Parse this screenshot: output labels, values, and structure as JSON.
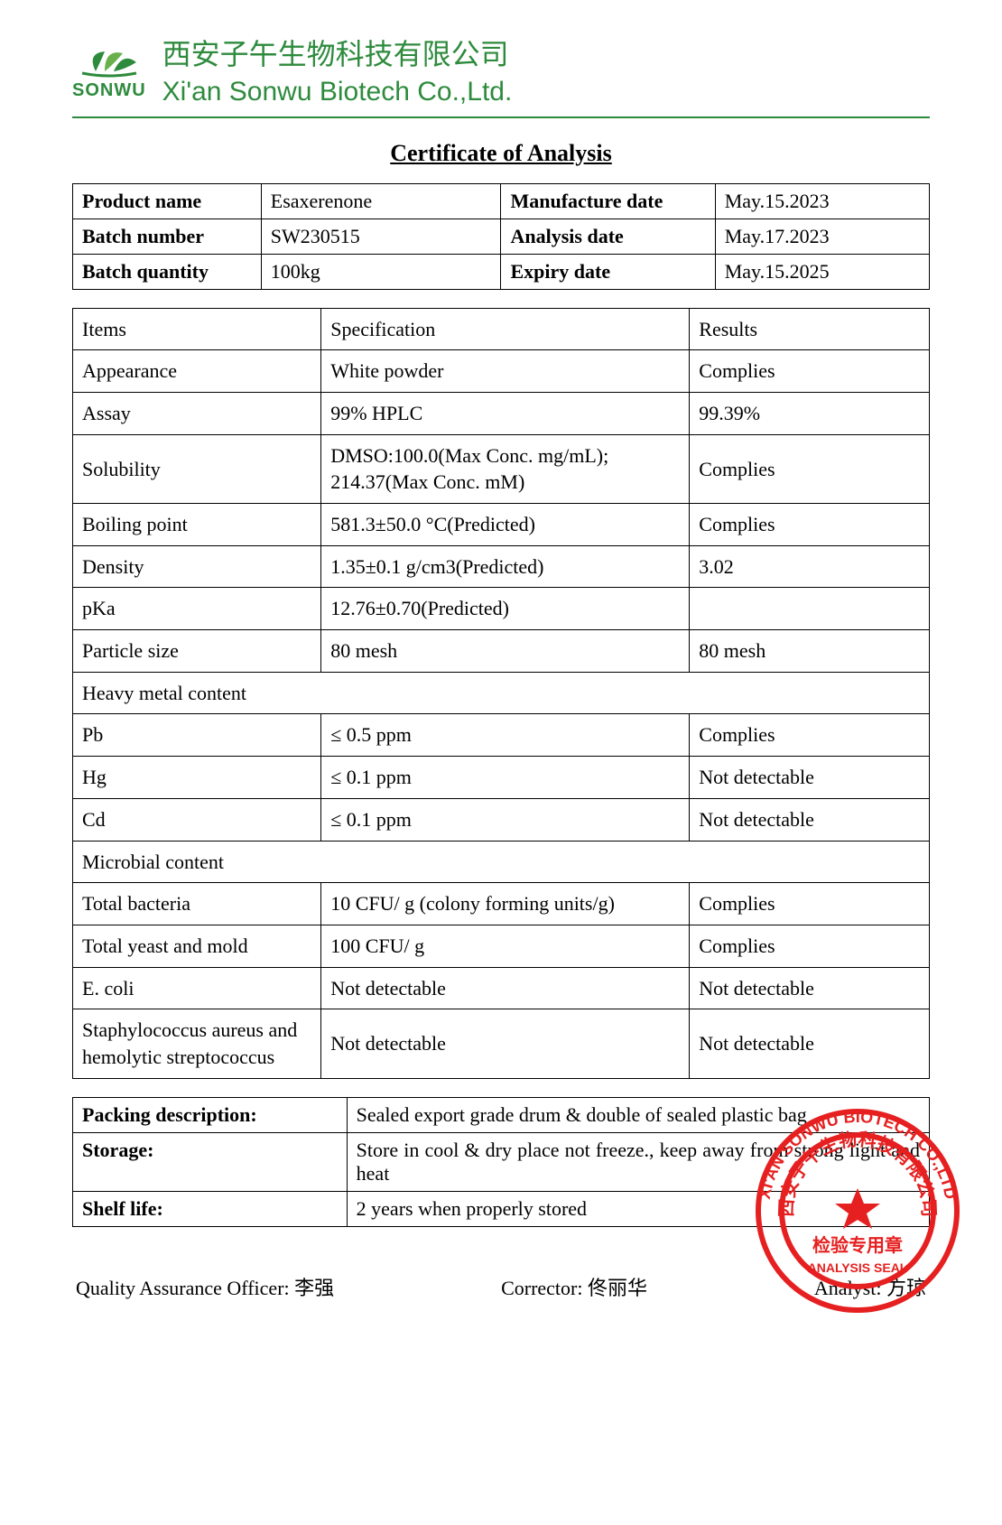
{
  "brand": {
    "logo_text": "SONWU",
    "company_cn": "西安子午生物科技有限公司",
    "company_en": "Xi'an Sonwu Biotech Co.,Ltd.",
    "brand_color": "#2e8b3d"
  },
  "document": {
    "title": "Certificate of Analysis"
  },
  "info_table": {
    "rows": [
      {
        "label": "Product name",
        "value": "Esaxerenone",
        "label2": "Manufacture date",
        "value2": "May.15.2023"
      },
      {
        "label": "Batch number",
        "value": "SW230515",
        "label2": "Analysis date",
        "value2": "May.17.2023"
      },
      {
        "label": "Batch quantity",
        "value": "100kg",
        "label2": "Expiry date",
        "value2": "May.15.2025"
      }
    ]
  },
  "analysis_table": {
    "header": {
      "c1": "Items",
      "c2": "Specification",
      "c3": "Results"
    },
    "rows": [
      {
        "type": "row",
        "c1": "Appearance",
        "c2": "White powder",
        "c3": "Complies"
      },
      {
        "type": "row",
        "c1": "Assay",
        "c2": "99% HPLC",
        "c3": "99.39%"
      },
      {
        "type": "row",
        "c1": "Solubility",
        "c2": "DMSO:100.0(Max Conc. mg/mL); 214.37(Max Conc. mM)",
        "c3": "Complies"
      },
      {
        "type": "row",
        "c1": "Boiling point",
        "c2": "581.3±50.0 °C(Predicted)",
        "c3": "Complies"
      },
      {
        "type": "row",
        "c1": "Density",
        "c2": "1.35±0.1 g/cm3(Predicted)",
        "c3": "3.02"
      },
      {
        "type": "row",
        "c1": "pKa",
        "c2": "12.76±0.70(Predicted)",
        "c3": ""
      },
      {
        "type": "row",
        "c1": "Particle size",
        "c2": "80 mesh",
        "c3": "80 mesh"
      },
      {
        "type": "section",
        "text": "Heavy metal content"
      },
      {
        "type": "row",
        "c1": "Pb",
        "c2": "≤ 0.5 ppm",
        "c3": "Complies"
      },
      {
        "type": "row",
        "c1": "Hg",
        "c2": "≤ 0.1 ppm",
        "c3": "Not detectable"
      },
      {
        "type": "row",
        "c1": "Cd",
        "c2": "≤ 0.1 ppm",
        "c3": "Not detectable"
      },
      {
        "type": "section",
        "text": "Microbial content"
      },
      {
        "type": "row",
        "c1": "Total bacteria",
        "c2": "10 CFU/ g (colony forming units/g)",
        "c3": "Complies"
      },
      {
        "type": "row",
        "c1": "Total yeast and mold",
        "c2": "100 CFU/ g",
        "c3": "Complies"
      },
      {
        "type": "row",
        "c1": "E. coli",
        "c2": "Not detectable",
        "c3": "Not detectable"
      },
      {
        "type": "row",
        "c1": "Staphylococcus aureus and hemolytic streptococcus",
        "c2": "Not detectable",
        "c3": "Not detectable"
      }
    ]
  },
  "footer_table": {
    "rows": [
      {
        "label": "Packing description:",
        "value": "Sealed export grade drum & double of sealed plastic bag"
      },
      {
        "label": "Storage:",
        "value": "Store in cool & dry place not freeze., keep away from strong light and heat"
      },
      {
        "label": "Shelf life:",
        "value": "2 years when properly stored"
      }
    ]
  },
  "signatures": {
    "qa_label": "Quality Assurance Officer:",
    "qa_name": "李强",
    "corrector_label": "Corrector:",
    "corrector_name": "佟丽华",
    "analyst_label": "Analyst:",
    "analyst_name": "方琼"
  },
  "seal": {
    "outer_text_en": "XI'AN SONWU BIOTECH CO.,LTD",
    "inner_text_cn": "西安子午生物科技有限公司",
    "center_cn": "检验专用章",
    "bottom_en": "ANALYSIS SEAL",
    "color": "#e62020"
  }
}
